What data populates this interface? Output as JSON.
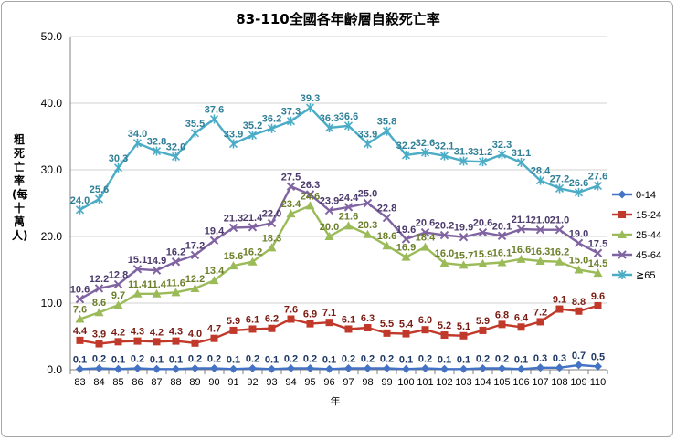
{
  "chart_data": {
    "type": "line",
    "title": "83-110全國各年齡層自殺死亡率",
    "ylabel": "粗死亡率(每十萬人)",
    "xlabel": "年",
    "ylim": [
      0,
      50
    ],
    "yticks": [
      "0.0",
      "10.0",
      "20.0",
      "30.0",
      "40.0",
      "50.0"
    ],
    "grid": true,
    "legend_position": "right",
    "categories": [
      "83",
      "84",
      "85",
      "86",
      "87",
      "88",
      "89",
      "90",
      "91",
      "92",
      "93",
      "94",
      "95",
      "96",
      "97",
      "98",
      "99",
      "100",
      "101",
      "102",
      "103",
      "104",
      "105",
      "106",
      "107",
      "108",
      "109",
      "110"
    ],
    "series": [
      {
        "name": "0-14",
        "color": "#4472c4",
        "marker": "diamond",
        "values": [
          0.1,
          0.2,
          0.1,
          0.2,
          0.1,
          0.1,
          0.2,
          0.2,
          0.1,
          0.2,
          0.1,
          0.2,
          0.2,
          0.1,
          0.2,
          0.2,
          0.2,
          0.1,
          0.2,
          0.1,
          0.1,
          0.2,
          0.2,
          0.1,
          0.3,
          0.3,
          0.7,
          0.5
        ],
        "labels": [
          "0.1",
          "0.2",
          "0.1",
          "0.2",
          "0.1",
          "0.1",
          "0.2",
          "0.2",
          "0.1",
          "0.2",
          "0.1",
          "0.2",
          "0.2",
          "0.1",
          "0.2",
          "0.2",
          "0.2",
          "0.1",
          "0.2",
          "0.1",
          "0.1",
          "0.2",
          "0.2",
          "0.1",
          "0.3",
          "0.3",
          "0.7",
          "0.5"
        ]
      },
      {
        "name": "15-24",
        "color": "#c0392b",
        "marker": "square",
        "values": [
          4.4,
          3.9,
          4.2,
          4.3,
          4.2,
          4.3,
          4.0,
          4.7,
          5.9,
          6.1,
          6.2,
          7.6,
          6.9,
          7.1,
          6.1,
          6.3,
          5.5,
          5.4,
          6.0,
          5.2,
          5.1,
          5.9,
          6.8,
          6.4,
          7.2,
          9.1,
          8.8,
          9.6
        ],
        "labels": [
          "4.4",
          "3.9",
          "4.2",
          "4.3",
          "4.2",
          "4.3",
          "4.0",
          "4.7",
          "5.9",
          "6.1",
          "6.2",
          "7.6",
          "6.9",
          "7.1",
          "6.1",
          "6.3",
          "5.5",
          "5.4",
          "6.0",
          "5.2",
          "5.1",
          "5.9",
          "6.8",
          "6.4",
          "7.2",
          "9.1",
          "8.8",
          "9.6"
        ]
      },
      {
        "name": "25-44",
        "color": "#9bbb59",
        "marker": "triangle",
        "values": [
          7.6,
          8.6,
          9.7,
          11.4,
          11.4,
          11.6,
          12.2,
          13.4,
          15.6,
          16.2,
          18.3,
          23.4,
          24.6,
          20.0,
          21.6,
          20.3,
          18.6,
          16.9,
          18.4,
          16.0,
          15.7,
          15.9,
          16.1,
          16.6,
          16.3,
          16.2,
          15.0,
          14.5
        ],
        "labels": [
          "7.6",
          "8.6",
          "9.7",
          "11.4",
          "11.4",
          "11.6",
          "12.2",
          "13.4",
          "15.6",
          "16.2",
          "18.3",
          "23.4",
          "24.6",
          "20.0",
          "21.6",
          "20.3",
          "18.6",
          "16.9",
          "18.4",
          "16.0",
          "15.7",
          "15.9",
          "16.1",
          "16.6",
          "16.3",
          "16.2",
          "15.0",
          "14.5"
        ]
      },
      {
        "name": "45-64",
        "color": "#8064a2",
        "marker": "x",
        "values": [
          10.6,
          12.2,
          12.8,
          15.1,
          14.9,
          16.2,
          17.2,
          19.4,
          21.3,
          21.4,
          22.0,
          27.5,
          26.3,
          23.9,
          24.4,
          25.0,
          22.8,
          19.6,
          20.6,
          20.2,
          19.9,
          20.6,
          20.1,
          21.1,
          21.0,
          21.0,
          19.0,
          17.5
        ],
        "labels": [
          "10.6",
          "12.2",
          "12.8",
          "15.1",
          "14.9",
          "16.2",
          "17.2",
          "19.4",
          "21.3",
          "21.4",
          "22.0",
          "27.5",
          "26.3",
          "23.9",
          "24.4",
          "25.0",
          "22.8",
          "19.6",
          "20.6",
          "20.2",
          "19.9",
          "20.6",
          "20.1",
          "21.1",
          "21.0",
          "21.0",
          "19.0",
          "17.5"
        ]
      },
      {
        "name": "≧65",
        "color": "#4bacc6",
        "marker": "star",
        "values": [
          24.0,
          25.6,
          30.3,
          34.0,
          32.8,
          32.0,
          35.5,
          37.6,
          33.9,
          35.2,
          36.2,
          37.3,
          39.3,
          36.3,
          36.6,
          33.9,
          35.8,
          32.2,
          32.6,
          32.1,
          31.3,
          31.2,
          32.3,
          31.1,
          28.4,
          27.2,
          26.6,
          27.6
        ],
        "labels": [
          "24.0",
          "25.6",
          "30.3",
          "34.0",
          "32.8",
          "32.0",
          "35.5",
          "37.6",
          "33.9",
          "35.2",
          "36.2",
          "37.3",
          "39.3",
          "36.3",
          "36.6",
          "33.9",
          "35.8",
          "32.2",
          "32.6",
          "32.1",
          "31.3",
          "31.2",
          "32.3",
          "31.1",
          "28.4",
          "27.2",
          "26.6",
          "27.6"
        ]
      }
    ]
  }
}
